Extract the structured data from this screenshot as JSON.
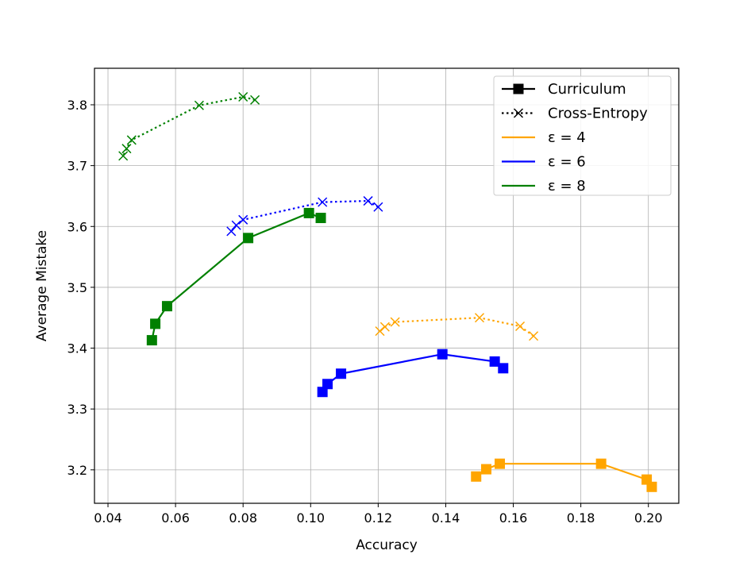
{
  "chart_data": {
    "type": "line",
    "title": "",
    "xlabel": "Accuracy",
    "ylabel": "Average Mistake",
    "xlim": [
      0.036,
      0.209
    ],
    "ylim": [
      3.145,
      3.86
    ],
    "grid": true,
    "legend_position": "top-right",
    "x_ticks": [
      "0.04",
      "0.06",
      "0.08",
      "0.10",
      "0.12",
      "0.14",
      "0.16",
      "0.18",
      "0.20"
    ],
    "y_ticks": [
      "3.2",
      "3.3",
      "3.4",
      "3.5",
      "3.6",
      "3.7",
      "3.8"
    ],
    "legend": {
      "styles": [
        {
          "label": "Curriculum",
          "marker": "square",
          "dash": "solid"
        },
        {
          "label": "Cross-Entropy",
          "marker": "x",
          "dash": "dotted"
        }
      ],
      "colors": [
        {
          "label": "ε = 4",
          "color": "#ffa500"
        },
        {
          "label": "ε = 6",
          "color": "#0000ff"
        },
        {
          "label": "ε = 8",
          "color": "#008000"
        }
      ]
    },
    "series": [
      {
        "method": "Curriculum",
        "epsilon": "4",
        "color": "#ffa500",
        "marker": "square",
        "dash": "solid",
        "x": [
          0.201,
          0.1995,
          0.186,
          0.156,
          0.152,
          0.149
        ],
        "y": [
          3.172,
          3.184,
          3.21,
          3.21,
          3.201,
          3.189
        ]
      },
      {
        "method": "Cross-Entropy",
        "epsilon": "4",
        "color": "#ffa500",
        "marker": "x",
        "dash": "dotted",
        "x": [
          0.166,
          0.162,
          0.15,
          0.125,
          0.122,
          0.1205
        ],
        "y": [
          3.42,
          3.436,
          3.45,
          3.443,
          3.435,
          3.428
        ]
      },
      {
        "method": "Curriculum",
        "epsilon": "6",
        "color": "#0000ff",
        "marker": "square",
        "dash": "solid",
        "x": [
          0.157,
          0.1545,
          0.139,
          0.109,
          0.105,
          0.1035
        ],
        "y": [
          3.367,
          3.378,
          3.39,
          3.358,
          3.341,
          3.328
        ]
      },
      {
        "method": "Cross-Entropy",
        "epsilon": "6",
        "color": "#0000ff",
        "marker": "x",
        "dash": "dotted",
        "x": [
          0.12,
          0.117,
          0.1035,
          0.08,
          0.078,
          0.0765
        ],
        "y": [
          3.632,
          3.642,
          3.64,
          3.611,
          3.602,
          3.592
        ]
      },
      {
        "method": "Curriculum",
        "epsilon": "8",
        "color": "#008000",
        "marker": "square",
        "dash": "solid",
        "x": [
          0.103,
          0.0995,
          0.0815,
          0.0575,
          0.054,
          0.053
        ],
        "y": [
          3.614,
          3.622,
          3.581,
          3.469,
          3.44,
          3.413
        ]
      },
      {
        "method": "Cross-Entropy",
        "epsilon": "8",
        "color": "#008000",
        "marker": "x",
        "dash": "dotted",
        "x": [
          0.0835,
          0.08,
          0.067,
          0.047,
          0.0455,
          0.0445
        ],
        "y": [
          3.808,
          3.813,
          3.799,
          3.742,
          3.728,
          3.716
        ]
      }
    ]
  }
}
